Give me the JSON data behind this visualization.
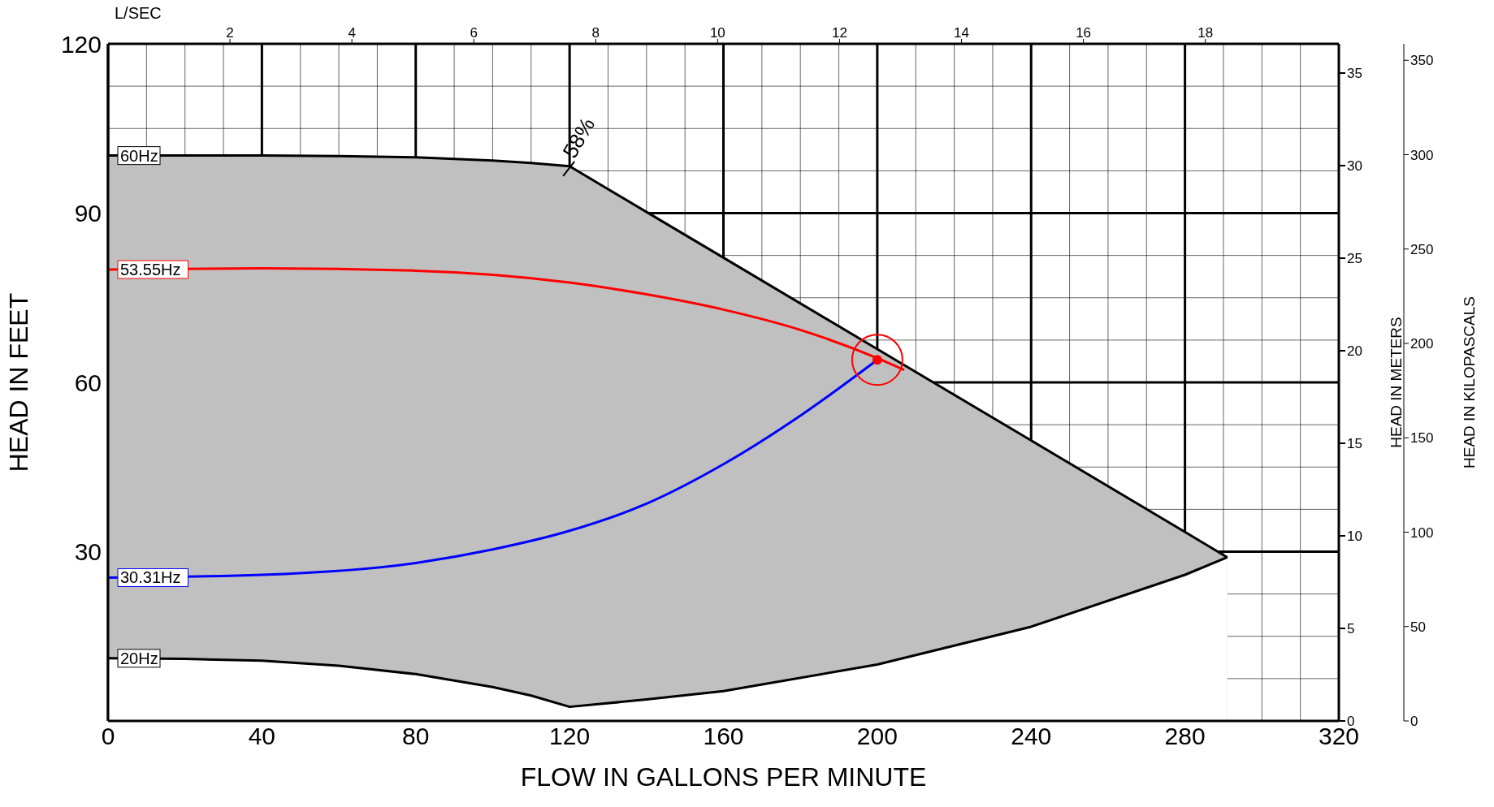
{
  "chart_data": {
    "type": "line",
    "xlabel": "FLOW IN GALLONS PER MINUTE",
    "ylabel": "HEAD IN FEET",
    "y2label": "HEAD IN METERS",
    "y3label": "HEAD IN KILOPASCALS",
    "x2label": "L/SEC",
    "xlim": [
      0,
      320
    ],
    "xticks": [
      0,
      {
        "value": 10,
        "label": null
      },
      {
        "value": 20,
        "label": null
      },
      {
        "value": 30,
        "label": null
      },
      40,
      {
        "value": 50,
        "label": null
      },
      {
        "value": 60,
        "label": null
      },
      {
        "value": 70,
        "label": null
      },
      80,
      {
        "value": 90,
        "label": null
      },
      {
        "value": 100,
        "label": null
      },
      {
        "value": 110,
        "label": null
      },
      120,
      {
        "value": 130,
        "label": null
      },
      {
        "value": 140,
        "label": null
      },
      {
        "value": 150,
        "label": null
      },
      160,
      {
        "value": 170,
        "label": null
      },
      {
        "value": 180,
        "label": null
      },
      {
        "value": 190,
        "label": null
      },
      200,
      {
        "value": 210,
        "label": null
      },
      {
        "value": 220,
        "label": null
      },
      {
        "value": 230,
        "label": null
      },
      240,
      {
        "value": 250,
        "label": null
      },
      {
        "value": 260,
        "label": null
      },
      {
        "value": 270,
        "label": null
      },
      280,
      {
        "value": 290,
        "label": null
      },
      {
        "value": 300,
        "label": null
      },
      {
        "value": 310,
        "label": null
      },
      320
    ],
    "ylim": [
      0,
      120
    ],
    "yticks": [
      {
        "value": 0,
        "label": null
      },
      {
        "value": 7.5,
        "label": null
      },
      {
        "value": 15,
        "label": null
      },
      {
        "value": 22.5,
        "label": null
      },
      30,
      {
        "value": 37.5,
        "label": null
      },
      {
        "value": 45,
        "label": null
      },
      {
        "value": 52.5,
        "label": null
      },
      60,
      {
        "value": 67.5,
        "label": null
      },
      {
        "value": 75,
        "label": null
      },
      {
        "value": 82.5,
        "label": null
      },
      90,
      {
        "value": 97.5,
        "label": null
      },
      {
        "value": 105,
        "label": null
      },
      {
        "value": 112.5,
        "label": null
      },
      120
    ],
    "y2lim": [
      0,
      36.58
    ],
    "y2ticks": [
      0,
      5,
      10,
      15,
      20,
      25,
      30,
      35
    ],
    "y3lim": [
      0,
      358.7
    ],
    "y3ticks": [
      0,
      50,
      100,
      150,
      200,
      250,
      300,
      350
    ],
    "x2lim": [
      0,
      20.19
    ],
    "x2ticks": [
      2,
      4,
      6,
      8,
      10,
      12,
      14,
      16,
      18
    ],
    "grid": true,
    "legend": false,
    "line_style": "solid",
    "marker": "none",
    "series": [
      {
        "name": "60Hz",
        "type": "area",
        "color": "#c0c0c0",
        "x": [
          0,
          20,
          40,
          60,
          80,
          100,
          110,
          120,
          140,
          160,
          200,
          240,
          280,
          291
        ],
        "values": [
          100.2,
          100.2,
          100.2,
          100.1,
          99.9,
          99.3,
          98.9,
          98.3,
          90.2,
          82.1,
          65.9,
          49.7,
          33.5,
          29
        ]
      },
      {
        "name": "20Hz",
        "type": "area",
        "color": "#ffffff",
        "x": [
          0,
          20,
          40,
          60,
          80,
          100,
          110,
          120,
          140,
          160,
          200,
          240,
          280,
          291
        ],
        "values": [
          11.1,
          11,
          10.7,
          9.8,
          8.3,
          6,
          4.5,
          2.5,
          3.8,
          5.3,
          10,
          16.7,
          25.9,
          29
        ]
      },
      {
        "name": "53.55Hz",
        "color": "#ff0000",
        "x": [
          0,
          40,
          80,
          120,
          140,
          160,
          180,
          200,
          207
        ],
        "values": [
          80,
          80.2,
          79.8,
          77.7,
          75.6,
          72.9,
          69.3,
          64.3,
          62.2
        ]
      },
      {
        "name": "30.31Hz",
        "color": "#0000ff",
        "x": [
          0,
          40,
          80,
          100,
          120,
          140,
          160,
          180,
          200
        ],
        "values": [
          25.4,
          25.9,
          28,
          30.4,
          33.7,
          38.5,
          45.5,
          54.1,
          64
        ]
      },
      {
        "type": "scatter",
        "color": "#ff0000",
        "x": [
          200
        ],
        "values": [
          64
        ],
        "marker": "circle"
      }
    ],
    "annotations": [
      {
        "text": "58%",
        "x": 120,
        "y": 98.3
      }
    ]
  }
}
